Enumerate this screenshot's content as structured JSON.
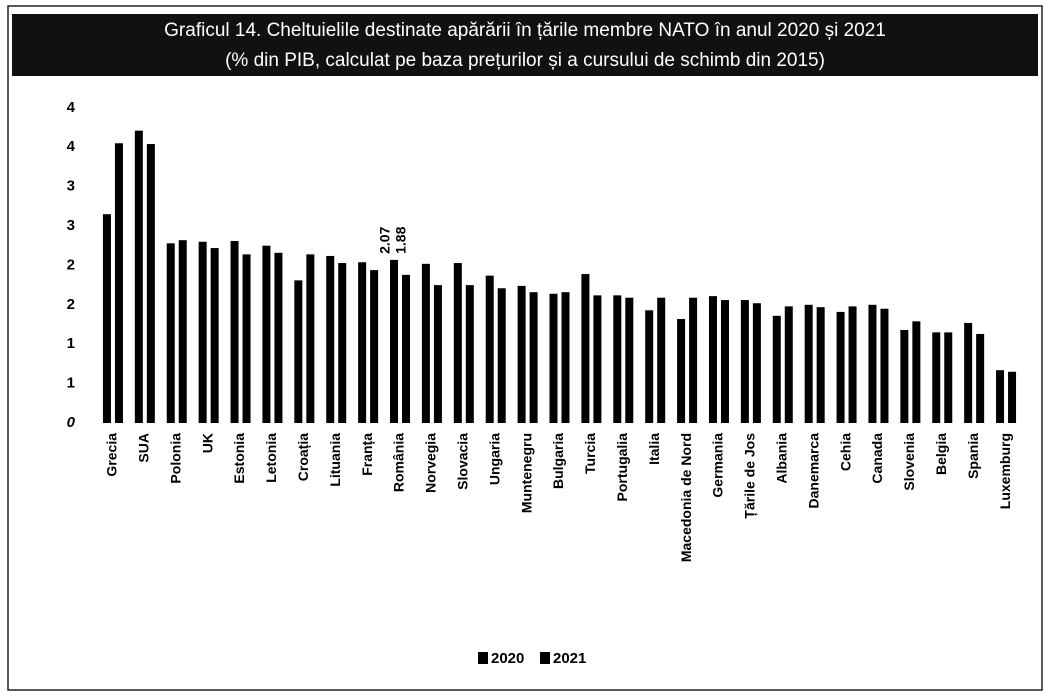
{
  "chart_data": {
    "type": "bar",
    "title": "Graficul 14. Cheltuielile destinate apărării în țările membre NATO în anul 2020 și 2021",
    "subtitle": "(% din PIB, calculat pe baza prețurilor și a cursului de schimb din 2015)",
    "categories": [
      "Grecia",
      "SUA",
      "Polonia",
      "UK",
      "Estonia",
      "Letonia",
      "Croația",
      "Lituania",
      "Franța",
      "România",
      "Norvegia",
      "Slovacia",
      "Ungaria",
      "Muntenegru",
      "Bulgaria",
      "Turcia",
      "Portugalia",
      "Italia",
      "Macedonia de Nord",
      "Germania",
      "Țările de Jos",
      "Albania",
      "Danemarca",
      "Cehia",
      "Canada",
      "Slovenia",
      "Belgia",
      "Spania",
      "Luxemburg"
    ],
    "series": [
      {
        "name": "2020",
        "color": "#000000",
        "values": [
          2.65,
          3.71,
          2.28,
          2.3,
          2.31,
          2.25,
          1.81,
          2.12,
          2.04,
          2.07,
          2.02,
          2.03,
          1.87,
          1.74,
          1.64,
          1.89,
          1.62,
          1.43,
          1.32,
          1.61,
          1.56,
          1.36,
          1.5,
          1.41,
          1.5,
          1.18,
          1.15,
          1.27,
          0.67
        ],
        "value_labels": [
          null,
          null,
          null,
          null,
          null,
          null,
          null,
          null,
          null,
          "2.07",
          null,
          null,
          null,
          null,
          null,
          null,
          null,
          null,
          null,
          null,
          null,
          null,
          null,
          null,
          null,
          null,
          null,
          null,
          null
        ]
      },
      {
        "name": "2021",
        "color": "#000000",
        "values": [
          3.55,
          3.54,
          2.32,
          2.22,
          2.14,
          2.16,
          2.14,
          2.03,
          1.94,
          1.88,
          1.75,
          1.75,
          1.71,
          1.66,
          1.66,
          1.62,
          1.59,
          1.59,
          1.59,
          1.56,
          1.52,
          1.48,
          1.47,
          1.48,
          1.45,
          1.29,
          1.15,
          1.13,
          0.65
        ],
        "value_labels": [
          null,
          null,
          null,
          null,
          null,
          null,
          null,
          null,
          null,
          "1.88",
          null,
          null,
          null,
          null,
          null,
          null,
          null,
          null,
          null,
          null,
          null,
          null,
          null,
          null,
          null,
          null,
          null,
          null,
          null
        ]
      }
    ],
    "ylim": [
      0,
      4.1
    ],
    "yticks": [
      0,
      {
        "value": 0.5,
        "label": "1"
      },
      1,
      {
        "value": 1.5,
        "label": "2"
      },
      2,
      {
        "value": 2.5,
        "label": "3"
      },
      3,
      {
        "value": 3.5,
        "label": "4"
      },
      4
    ],
    "grid": false,
    "legend": "bottom"
  }
}
